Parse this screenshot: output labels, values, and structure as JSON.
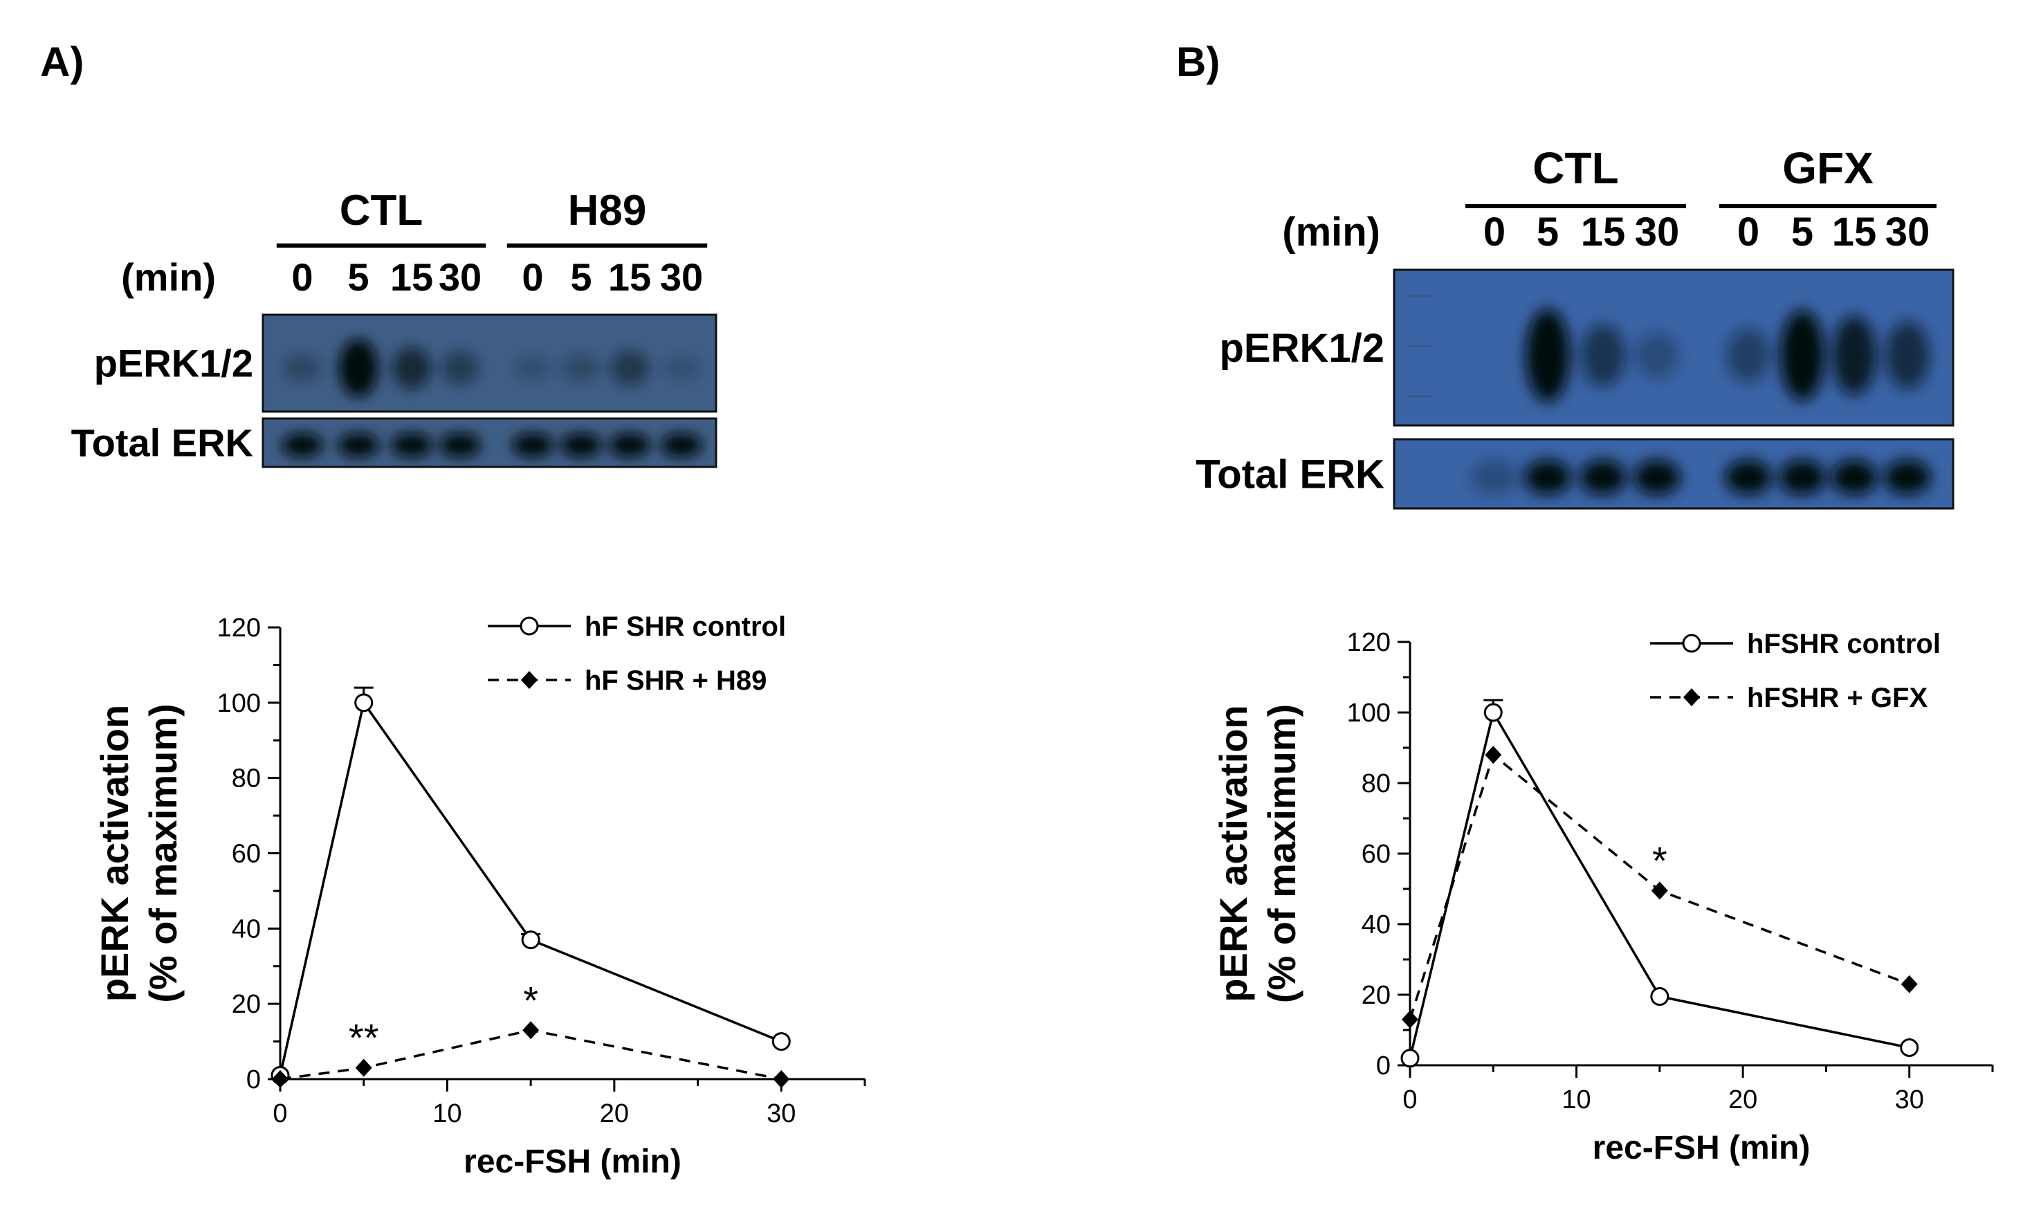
{
  "panels": [
    {
      "letter": "A)",
      "blot": {
        "groups": [
          "CTL",
          "H89"
        ],
        "time_label": "(min)",
        "times": [
          "0",
          "5",
          "15",
          "30",
          "0",
          "5",
          "15",
          "30"
        ],
        "rows": [
          "pERK1/2",
          "Total ERK"
        ],
        "pERK_intensity": [
          0.15,
          1.0,
          0.55,
          0.3,
          0.05,
          0.12,
          0.35,
          0.02
        ],
        "total_intensity": [
          1,
          1,
          1,
          1,
          1,
          1,
          1,
          1
        ]
      }
    },
    {
      "letter": "B)",
      "blot": {
        "groups": [
          "CTL",
          "GFX"
        ],
        "time_label": "(min)",
        "times": [
          "0",
          "5",
          "15",
          "30",
          "0",
          "5",
          "15",
          "30"
        ],
        "rows": [
          "pERK1/2",
          "Total ERK"
        ],
        "pERK_intensity": [
          0.0,
          1.0,
          0.45,
          0.15,
          0.3,
          0.95,
          0.75,
          0.55
        ],
        "total_intensity": [
          0.1,
          1,
          1,
          1,
          1,
          1,
          1,
          1
        ]
      }
    }
  ],
  "chart_data": [
    {
      "type": "line",
      "xlabel": "rec-FSH (min)",
      "ylabel_line1": "pERK activation",
      "ylabel_line2": "(% of maximum)",
      "xlim": [
        0,
        35
      ],
      "ylim": [
        0,
        120
      ],
      "xticks": [
        "0",
        "10",
        "20",
        "30"
      ],
      "yticks": [
        "0",
        "20",
        "40",
        "60",
        "80",
        "100",
        "120"
      ],
      "x": [
        0,
        5,
        15,
        30
      ],
      "legend_position": "top-right",
      "series": [
        {
          "name": "hF SHR control",
          "values": [
            1,
            100,
            37,
            10
          ],
          "errors": [
            0,
            4,
            1.5,
            0
          ],
          "style": "solid",
          "marker": "open-circle"
        },
        {
          "name": "hF SHR + H89",
          "values": [
            0,
            3,
            13,
            0
          ],
          "errors": [
            0,
            0,
            0,
            0
          ],
          "style": "dashed",
          "marker": "filled-diamond"
        }
      ],
      "annotations": [
        {
          "text": "**",
          "x": 5,
          "y": 3
        },
        {
          "text": "*",
          "x": 15,
          "y": 13
        }
      ]
    },
    {
      "type": "line",
      "xlabel": "rec-FSH (min)",
      "ylabel_line1": "pERK activation",
      "ylabel_line2": "(% of maximum)",
      "xlim": [
        0,
        35
      ],
      "ylim": [
        0,
        120
      ],
      "xticks": [
        "0",
        "10",
        "20",
        "30"
      ],
      "yticks": [
        "0",
        "20",
        "40",
        "60",
        "80",
        "100",
        "120"
      ],
      "x": [
        0,
        5,
        15,
        30
      ],
      "legend_position": "top-right",
      "series": [
        {
          "name": "hFSHR control",
          "values": [
            2,
            100,
            19.5,
            5
          ],
          "errors": [
            0,
            3.5,
            0,
            0
          ],
          "style": "solid",
          "marker": "open-circle"
        },
        {
          "name": "hFSHR + GFX",
          "values": [
            13,
            88,
            49.5,
            23
          ],
          "errors": [
            0,
            0,
            0,
            0
          ],
          "style": "dashed",
          "marker": "filled-diamond"
        }
      ],
      "annotations": [
        {
          "text": "*",
          "x": 15,
          "y": 49.5
        }
      ]
    }
  ]
}
